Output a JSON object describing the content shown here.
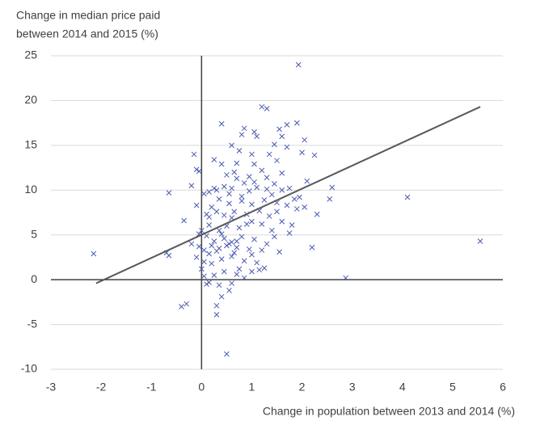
{
  "chart_data": {
    "type": "scatter",
    "title": [
      "Change in median price paid",
      "between 2014 and 2015 (%)"
    ],
    "x_label": "Change in population between  2013 and 2014 (%)",
    "marker": "x",
    "color": "#4a5ab0",
    "grid": true,
    "xlim": [
      -3,
      6
    ],
    "xticks": [
      -3,
      -2,
      -1,
      0,
      1,
      2,
      3,
      4,
      5,
      6
    ],
    "ylim": [
      -10,
      25
    ],
    "yticks": [
      -10,
      -5,
      0,
      5,
      10,
      15,
      20,
      25
    ],
    "x": [
      -2.15,
      1.93,
      5.55,
      4.1,
      2.87,
      0.5,
      0.3,
      -0.4,
      -0.3,
      -0.65,
      -0.65,
      -0.7,
      -0.35,
      -0.15,
      -0.1,
      -0.05,
      0.1,
      1.2,
      1.3,
      1.9,
      1.7,
      1.55,
      0.85,
      0.8,
      0.4,
      1.05,
      1.1,
      2.05,
      0.6,
      1.45,
      1.6,
      1.35,
      2.25,
      2,
      1.0,
      0.75,
      0.4,
      0.25,
      0.7,
      1.05,
      1.5,
      1.7,
      1.6,
      2.1,
      1.2,
      0.95,
      0.7,
      0.5,
      0.3,
      0.15,
      0.05,
      -0.2,
      0.45,
      0.6,
      0.85,
      1.1,
      1.3,
      1.45,
      1.75,
      1.95,
      2.6,
      2.55,
      2.05,
      1.9,
      2.3,
      1.7,
      1.5,
      1.25,
      1.0,
      0.8,
      0.55,
      0.35,
      0.2,
      0.1,
      0.3,
      0.45,
      0.65,
      0.9,
      1.15,
      1.35,
      1.6,
      1.8,
      2.2,
      1.75,
      1.4,
      1.2,
      1.0,
      0.75,
      0.5,
      0.35,
      0.15,
      0.0,
      -0.05,
      0.1,
      0.25,
      0.45,
      0.6,
      0.8,
      1.05,
      1.3,
      1.55,
      1.2,
      0.95,
      0.7,
      0.5,
      0.3,
      0.15,
      -0.05,
      -0.2,
      -0.1,
      0.05,
      0.2,
      0.4,
      0.6,
      0.85,
      1.1,
      1.25,
      0.75,
      0.45,
      0.25,
      0.05,
      0.0,
      0.15,
      0.35,
      0.6,
      0.85,
      0.55,
      0.4,
      0.3,
      0.7,
      1.0,
      1.15,
      -0.1,
      0.55,
      0.95,
      1.4,
      1.6,
      0.25,
      0.65,
      1.3,
      1.05,
      0.9,
      0.6,
      0.4,
      0.2,
      1.5,
      1.85,
      0.8,
      0.15,
      1.0,
      0.55,
      0.7,
      0.65,
      0.35,
      1.45,
      0.05
    ],
    "values": [
      2.9,
      24,
      4.3,
      9.2,
      0.2,
      -8.3,
      -3.9,
      -3,
      -2.7,
      9.7,
      2.7,
      3,
      6.6,
      14,
      12.3,
      12.1,
      -0.5,
      19.3,
      19.1,
      17.5,
      17.3,
      16.8,
      16.9,
      16.2,
      17.4,
      16.5,
      16,
      15.6,
      15,
      15.1,
      16,
      14,
      13.9,
      14.2,
      14,
      14.4,
      12.9,
      13.4,
      13,
      12.9,
      13.3,
      14.8,
      11.9,
      11,
      12.2,
      11.5,
      11.3,
      11.7,
      10,
      9.8,
      9.6,
      10.5,
      10.4,
      10.2,
      10.8,
      10.3,
      10.1,
      10.7,
      10.2,
      9.2,
      10.3,
      9,
      8.1,
      7.9,
      7.3,
      8.3,
      8.6,
      8.9,
      8.4,
      8.8,
      8.5,
      9,
      8.1,
      7.3,
      7.6,
      7.2,
      7.6,
      7.3,
      7.7,
      7.1,
      6.5,
      6.1,
      3.6,
      5.2,
      5.5,
      6.2,
      6.5,
      5.8,
      6.0,
      5.5,
      6.1,
      5.5,
      5.1,
      4.9,
      4.3,
      4.6,
      4.2,
      4.8,
      4.5,
      4.0,
      3.1,
      3.3,
      3.4,
      3.6,
      3.8,
      3.2,
      2.9,
      3.7,
      4.0,
      2.5,
      2.0,
      1.8,
      2.3,
      2.6,
      2.1,
      1.9,
      1.3,
      1.2,
      0.9,
      0.5,
      0.4,
      1.2,
      -0.3,
      -0.6,
      -0.4,
      0.2,
      -1.2,
      -1.9,
      -2.9,
      0.6,
      0.9,
      1.1,
      8.3,
      9.6,
      9.9,
      9.5,
      10.0,
      10.2,
      12.0,
      11.4,
      10.9,
      6.2,
      6.9,
      5.1,
      3.8,
      7.6,
      9.0,
      9.3,
      7.0,
      2.8,
      4.0,
      4.3,
      3.0,
      3.5,
      4.8,
      3.3
    ],
    "trendline": {
      "color": "#595959",
      "x": [
        -2.1,
        5.55
      ],
      "values": [
        -0.4,
        19.3
      ]
    }
  }
}
